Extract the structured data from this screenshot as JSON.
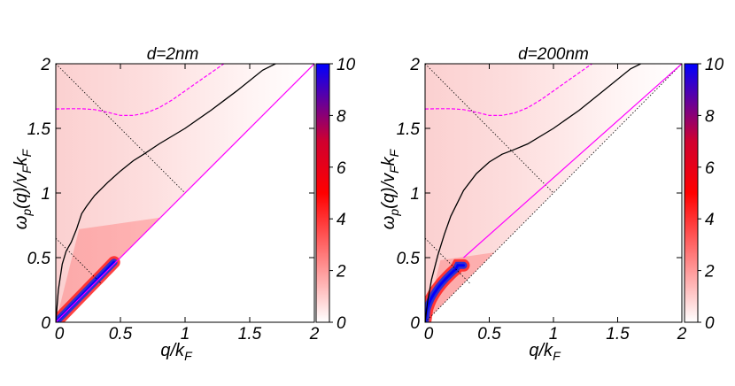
{
  "colors": {
    "heat_low": "#ffffff",
    "heat_mid": "#ff0000",
    "heat_high": "#0000ff",
    "dispersion_curve": "#000000",
    "magenta_curve": "#ff00ff",
    "dotted_lines": "#000000"
  },
  "chart_data": [
    {
      "type": "heatmap",
      "title": "d=2nm",
      "xlabel_text": "q/k",
      "xlabel_sub": "F",
      "ylabel_parts": [
        "ω",
        "p",
        "(q)/v",
        "F",
        "k",
        "F"
      ],
      "xlim": [
        0,
        2
      ],
      "ylim": [
        0,
        2
      ],
      "xticks": [
        "0",
        "0.5",
        "1",
        "1.5",
        "2"
      ],
      "yticks": [
        "0",
        "0.5",
        "1",
        "1.5",
        "2"
      ],
      "colorbar": {
        "range": [
          0,
          10
        ],
        "ticks": [
          "0",
          "2",
          "4",
          "6",
          "8",
          "10"
        ]
      },
      "plasmon_curve": {
        "x": [
          0,
          0.02,
          0.05,
          0.08,
          0.12,
          0.16,
          0.2,
          0.24,
          0.3,
          0.4,
          0.5,
          0.6,
          0.68,
          0.8,
          1.0,
          1.2,
          1.4,
          1.6,
          1.7
        ],
        "y": [
          0,
          0.25,
          0.45,
          0.55,
          0.62,
          0.72,
          0.84,
          0.9,
          0.98,
          1.08,
          1.17,
          1.25,
          1.3,
          1.38,
          1.5,
          1.64,
          1.79,
          1.95,
          2.0
        ]
      },
      "magenta_dashed_curve": {
        "x": [
          0,
          0.1,
          0.2,
          0.3,
          0.4,
          0.5,
          0.6,
          0.7,
          0.8,
          0.9,
          1.0,
          1.1,
          1.2,
          1.3
        ],
        "y": [
          1.65,
          1.652,
          1.652,
          1.645,
          1.625,
          1.6,
          1.6,
          1.62,
          1.66,
          1.72,
          1.79,
          1.86,
          1.93,
          2.0
        ]
      },
      "magenta_solid_line": {
        "x": [
          0,
          2
        ],
        "y": [
          0,
          2
        ]
      },
      "dotted_lines": [
        {
          "x": [
            0,
            1
          ],
          "y": [
            2,
            1
          ]
        },
        {
          "x": [
            0,
            0.35
          ],
          "y": [
            0.65,
            0.3
          ]
        },
        {
          "x": [
            0,
            2
          ],
          "y": [
            0,
            2
          ]
        }
      ],
      "hotspot": {
        "q_from": 0,
        "q_to": 0.45,
        "peak": 10
      }
    },
    {
      "type": "heatmap",
      "title": "d=200nm",
      "xlabel_text": "q/k",
      "xlabel_sub": "F",
      "ylabel_parts": [
        "ω",
        "p",
        "(q)/v",
        "F",
        "k",
        "F"
      ],
      "xlim": [
        0,
        2
      ],
      "ylim": [
        0,
        2
      ],
      "xticks": [
        "0",
        "0.5",
        "1",
        "1.5",
        "2"
      ],
      "yticks": [
        "0",
        "0.5",
        "1",
        "1.5",
        "2"
      ],
      "colorbar": {
        "range": [
          0,
          10
        ],
        "ticks": [
          "0",
          "2",
          "4",
          "6",
          "8",
          "10"
        ]
      },
      "plasmon_curve": {
        "x": [
          0,
          0.02,
          0.05,
          0.1,
          0.15,
          0.2,
          0.3,
          0.4,
          0.5,
          0.6,
          0.68,
          0.8,
          1.0,
          1.2,
          1.4,
          1.6,
          1.68
        ],
        "y": [
          0,
          0.16,
          0.33,
          0.52,
          0.68,
          0.82,
          1.02,
          1.15,
          1.24,
          1.3,
          1.33,
          1.38,
          1.5,
          1.64,
          1.8,
          1.96,
          2.0
        ]
      },
      "magenta_dashed_curve": {
        "x": [
          0,
          0.1,
          0.2,
          0.3,
          0.4,
          0.5,
          0.6,
          0.7,
          0.8,
          0.9,
          1.0,
          1.1,
          1.2,
          1.3
        ],
        "y": [
          1.65,
          1.652,
          1.652,
          1.645,
          1.625,
          1.6,
          1.6,
          1.62,
          1.66,
          1.72,
          1.79,
          1.86,
          1.93,
          2.0
        ]
      },
      "magenta_solid_line": {
        "x": [
          0.3,
          2
        ],
        "y": [
          0.5,
          2
        ]
      },
      "dotted_lines": [
        {
          "x": [
            0,
            1
          ],
          "y": [
            2,
            1
          ]
        },
        {
          "x": [
            0,
            0.35
          ],
          "y": [
            0.65,
            0.3
          ]
        },
        {
          "x": [
            0,
            2
          ],
          "y": [
            0,
            2
          ]
        }
      ],
      "hotspot": {
        "q_from": 0,
        "q_to": 0.3,
        "peak": 10
      }
    }
  ]
}
